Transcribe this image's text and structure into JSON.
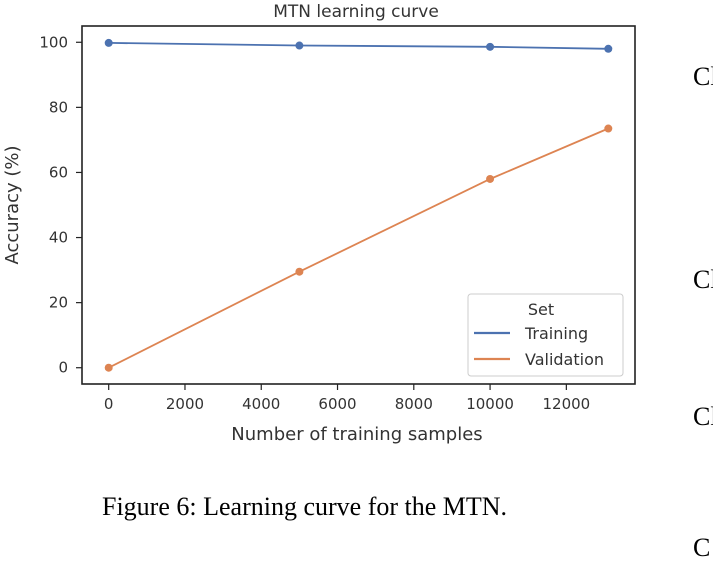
{
  "chart_data": {
    "type": "line",
    "title": "MTN learning curve",
    "xlabel": "Number of training samples",
    "ylabel": "Accuracy (%)",
    "xlim": [
      -700,
      13800
    ],
    "ylim": [
      -5,
      105
    ],
    "xticks": [
      0,
      2000,
      4000,
      6000,
      8000,
      10000,
      12000
    ],
    "yticks": [
      0,
      20,
      40,
      60,
      80,
      100
    ],
    "grid": false,
    "legend": {
      "title": "Set",
      "placement": "bottom-right"
    },
    "series": [
      {
        "name": "Training",
        "color": "#4c72b0",
        "x": [
          0,
          5000,
          10000,
          13100
        ],
        "y": [
          99.8,
          99.0,
          98.6,
          98.0
        ]
      },
      {
        "name": "Validation",
        "color": "#dd8452",
        "x": [
          0,
          5000,
          10000,
          13100
        ],
        "y": [
          0.0,
          29.5,
          58.0,
          73.5
        ]
      }
    ]
  },
  "caption": "Figure 6: Learning curve for the MTN.",
  "margin_letters": [
    "Cl",
    "Cl",
    "Cl",
    "C"
  ]
}
